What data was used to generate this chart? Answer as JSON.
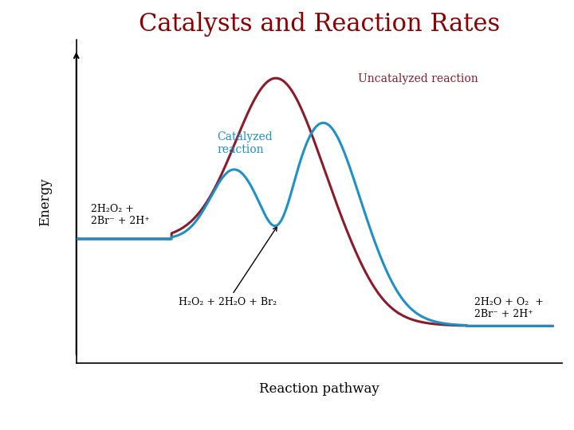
{
  "title": "Catalysts and Reaction Rates",
  "title_color": "#8B0000",
  "title_fontsize": 22,
  "xlabel": "Reaction pathway",
  "ylabel": "Energy",
  "uncatalyzed_color": "#8B1A2A",
  "catalyzed_color": "#1E90C8",
  "background_color": "#ffffff",
  "reactant_label": "2H₂O₂ +\n2Br⁻ + 2H⁺",
  "product_label": "2H₂O + O₂  +\n2Br⁻ + 2H⁺",
  "intermediate_label": "H₂O₂ + 2H₂O + Br₂",
  "uncatalyzed_label": "Uncatalyzed reaction",
  "catalyzed_label": "Catalyzed\nreaction"
}
